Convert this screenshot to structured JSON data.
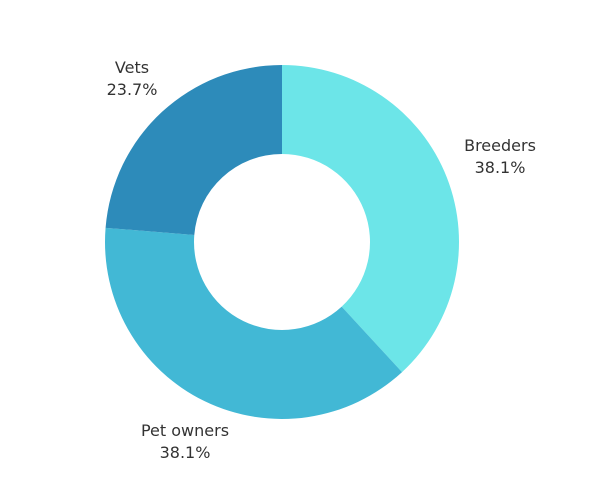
{
  "chart_data": {
    "type": "pie",
    "variant": "donut",
    "title": "",
    "categories": [
      "Breeders",
      "Pet owners",
      "Vets"
    ],
    "values": [
      38.1,
      38.1,
      23.7
    ],
    "percent_labels": [
      "38.1%",
      "38.1%",
      "23.7%"
    ],
    "colors": [
      "#6ce5e8",
      "#42b8d5",
      "#2d8bba"
    ],
    "legend": "none",
    "label_placement": "outside"
  }
}
